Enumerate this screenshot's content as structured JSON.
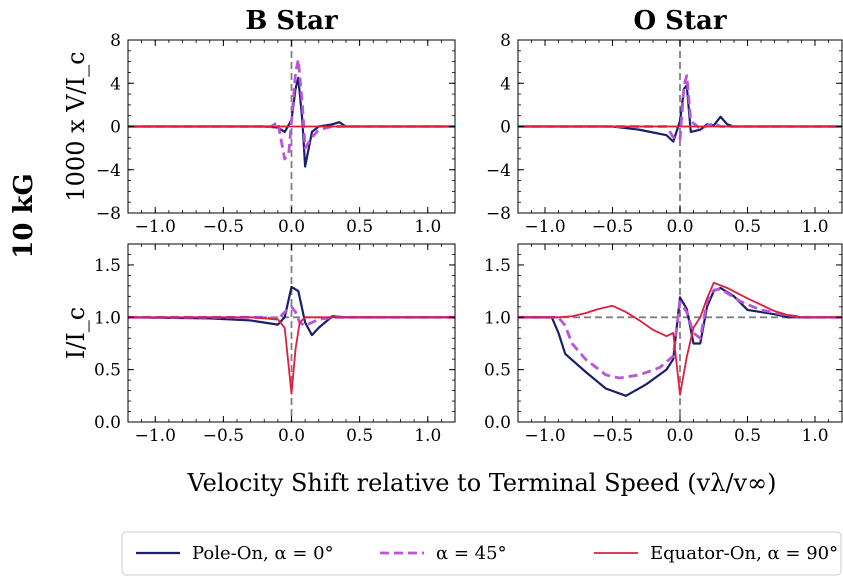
{
  "figure": {
    "row_label": "10 kG",
    "xlabel": "Velocity Shift relative to Terminal Speed (vλ/v∞)",
    "legend": [
      {
        "label": "Pole-On, α = 0°",
        "color": "#1a1f6b",
        "dash": "solid"
      },
      {
        "label": "α = 45°",
        "color": "#b855d9",
        "dash": "dashed"
      },
      {
        "label": "Equator-On, α = 90°",
        "color": "#dc1f3f",
        "dash": "solid"
      }
    ]
  },
  "chart_data": [
    {
      "type": "line",
      "panel": "stokes-v-b-star",
      "title": "B Star",
      "ylabel": "1000 x V/I_c",
      "xlim": [
        -1.2,
        1.2
      ],
      "ylim": [
        -8,
        8
      ],
      "xticks": [
        -1.0,
        -0.5,
        0.0,
        0.5,
        1.0
      ],
      "yticks": [
        -8,
        -4,
        0,
        4,
        8
      ],
      "yticklabels": [
        "−8",
        "−4",
        "0",
        "4",
        "8"
      ],
      "series": [
        {
          "name": "Pole-On, α = 0°",
          "x": [
            -1.2,
            -0.2,
            -0.1,
            -0.05,
            0.0,
            0.03,
            0.05,
            0.08,
            0.1,
            0.15,
            0.2,
            0.3,
            0.35,
            0.4,
            1.2
          ],
          "y": [
            0,
            0,
            -0.1,
            -0.5,
            0.6,
            3.5,
            4.5,
            0.5,
            -3.7,
            -0.5,
            0,
            0.2,
            0.4,
            0,
            0
          ]
        },
        {
          "name": "α = 45°",
          "x": [
            -1.2,
            -0.15,
            -0.1,
            -0.08,
            -0.05,
            -0.02,
            0.0,
            0.03,
            0.05,
            0.08,
            0.1,
            0.15,
            0.2,
            0.3,
            1.2
          ],
          "y": [
            0,
            0,
            0.4,
            -1.0,
            -3.0,
            -2.5,
            0.5,
            5.0,
            6.2,
            2.0,
            -2.0,
            -1.0,
            -0.3,
            0,
            0
          ]
        },
        {
          "name": "Equator-On, α = 90°",
          "x": [
            -1.2,
            1.2
          ],
          "y": [
            0,
            0
          ]
        }
      ]
    },
    {
      "type": "line",
      "panel": "stokes-v-o-star",
      "title": "O Star",
      "ylabel": "",
      "xlim": [
        -1.2,
        1.2
      ],
      "ylim": [
        -8,
        8
      ],
      "xticks": [
        -1.0,
        -0.5,
        0.0,
        0.5,
        1.0
      ],
      "yticks": [
        -8,
        -4,
        0,
        4,
        8
      ],
      "yticklabels": [
        "−8",
        "−4",
        "0",
        "4",
        "8"
      ],
      "series": [
        {
          "name": "Pole-On, α = 0°",
          "x": [
            -1.2,
            -0.5,
            -0.3,
            -0.1,
            -0.05,
            0.0,
            0.03,
            0.05,
            0.08,
            0.15,
            0.2,
            0.25,
            0.3,
            0.35,
            0.4,
            1.2
          ],
          "y": [
            0,
            0,
            -0.3,
            -0.8,
            -1.4,
            0.5,
            3.5,
            3.8,
            -0.5,
            -0.3,
            0.2,
            0.1,
            0.9,
            0.2,
            0,
            0
          ]
        },
        {
          "name": "α = 45°",
          "x": [
            -1.2,
            -0.1,
            -0.05,
            0.0,
            0.03,
            0.05,
            0.08,
            0.15,
            0.25,
            0.3,
            1.2
          ],
          "y": [
            0,
            0,
            -1.0,
            -1.2,
            3.8,
            4.7,
            0.5,
            -0.2,
            0.3,
            0,
            0
          ]
        },
        {
          "name": "Equator-On, α = 90°",
          "x": [
            -1.2,
            1.2
          ],
          "y": [
            0,
            0
          ]
        }
      ]
    },
    {
      "type": "line",
      "panel": "intensity-b-star",
      "title": "",
      "ylabel": "I/I_c",
      "xlim": [
        -1.2,
        1.2
      ],
      "ylim": [
        0.0,
        1.7
      ],
      "xticks": [
        -1.0,
        -0.5,
        0.0,
        0.5,
        1.0
      ],
      "yticks": [
        0.0,
        0.5,
        1.0,
        1.5
      ],
      "series": [
        {
          "name": "Pole-On, α = 0°",
          "x": [
            -1.2,
            -0.6,
            -0.3,
            -0.1,
            -0.05,
            0.0,
            0.05,
            0.1,
            0.15,
            0.2,
            0.3,
            0.4,
            1.2
          ],
          "y": [
            1.0,
            0.99,
            0.97,
            0.93,
            1.0,
            1.29,
            1.25,
            0.95,
            0.83,
            0.9,
            1.01,
            1.0,
            1.0
          ]
        },
        {
          "name": "α = 45°",
          "x": [
            -1.2,
            -0.2,
            -0.1,
            -0.05,
            0.0,
            0.03,
            0.06,
            0.1,
            0.15,
            0.2,
            0.3,
            1.2
          ],
          "y": [
            1.0,
            1.0,
            0.98,
            1.05,
            1.1,
            1.05,
            0.95,
            0.92,
            0.95,
            0.98,
            1.0,
            1.0
          ]
        },
        {
          "name": "Equator-On, α = 90°",
          "x": [
            -1.2,
            -0.6,
            -0.3,
            -0.2,
            -0.1,
            -0.05,
            0.0,
            0.03,
            0.06,
            0.1,
            0.2,
            0.3,
            1.2
          ],
          "y": [
            1.0,
            1.0,
            1.0,
            0.99,
            0.98,
            0.9,
            0.27,
            0.7,
            0.95,
            1.0,
            1.0,
            1.0,
            1.0
          ]
        }
      ]
    },
    {
      "type": "line",
      "panel": "intensity-o-star",
      "title": "",
      "ylabel": "",
      "xlim": [
        -1.2,
        1.2
      ],
      "ylim": [
        0.0,
        1.7
      ],
      "xticks": [
        -1.0,
        -0.5,
        0.0,
        0.5,
        1.0
      ],
      "yticks": [
        0.0,
        0.5,
        1.0,
        1.5
      ],
      "series": [
        {
          "name": "Pole-On, α = 0°",
          "x": [
            -1.2,
            -0.95,
            -0.9,
            -0.85,
            -0.7,
            -0.55,
            -0.4,
            -0.25,
            -0.1,
            -0.05,
            0.0,
            0.05,
            0.1,
            0.15,
            0.2,
            0.25,
            0.3,
            0.4,
            0.5,
            0.6,
            0.7,
            0.8,
            0.9,
            1.2
          ],
          "y": [
            1.0,
            1.0,
            0.85,
            0.65,
            0.48,
            0.32,
            0.25,
            0.36,
            0.5,
            0.6,
            1.19,
            1.08,
            0.75,
            0.75,
            1.1,
            1.25,
            1.28,
            1.2,
            1.07,
            1.05,
            1.03,
            1.0,
            1.0,
            1.0
          ]
        },
        {
          "name": "α = 45°",
          "x": [
            -1.2,
            -0.9,
            -0.85,
            -0.8,
            -0.7,
            -0.55,
            -0.45,
            -0.3,
            -0.15,
            -0.05,
            0.0,
            0.05,
            0.1,
            0.15,
            0.2,
            0.25,
            0.3,
            0.45,
            0.6,
            0.8,
            0.9,
            1.2
          ],
          "y": [
            1.0,
            1.0,
            0.92,
            0.75,
            0.6,
            0.45,
            0.42,
            0.45,
            0.52,
            0.63,
            1.15,
            1.05,
            0.85,
            0.8,
            1.15,
            1.26,
            1.27,
            1.15,
            1.07,
            1.02,
            1.0,
            1.0
          ]
        },
        {
          "name": "Equator-On, α = 90°",
          "x": [
            -1.2,
            -0.9,
            -0.8,
            -0.7,
            -0.6,
            -0.5,
            -0.4,
            -0.3,
            -0.2,
            -0.1,
            -0.05,
            0.0,
            0.05,
            0.1,
            0.15,
            0.2,
            0.25,
            0.35,
            0.5,
            0.6,
            0.7,
            0.8,
            0.9,
            1.2
          ],
          "y": [
            1.0,
            1.0,
            1.01,
            1.04,
            1.08,
            1.11,
            1.05,
            0.97,
            0.88,
            0.82,
            0.85,
            0.26,
            0.62,
            0.9,
            1.0,
            1.18,
            1.33,
            1.28,
            1.18,
            1.12,
            1.06,
            1.02,
            1.0,
            1.0
          ]
        }
      ]
    }
  ]
}
